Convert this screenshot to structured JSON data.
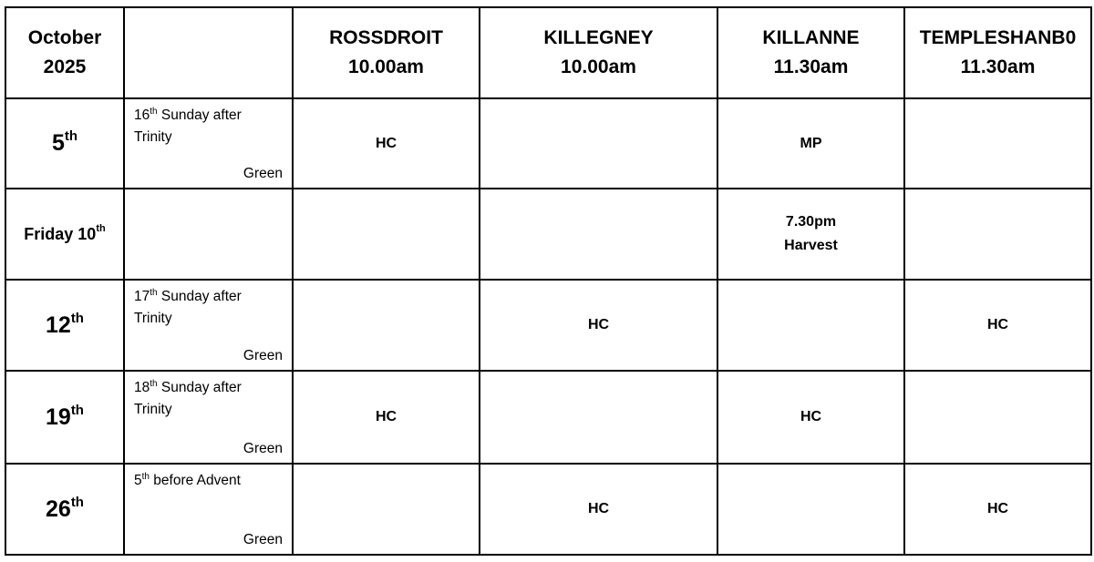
{
  "header": {
    "month": "October",
    "year": "2025",
    "churches": [
      {
        "name": "ROSSDROIT",
        "time": "10.00am"
      },
      {
        "name": "KILLEGNEY",
        "time": "10.00am"
      },
      {
        "name": "KILLANNE",
        "time": "11.30am"
      },
      {
        "name": "TEMPLESHANB0",
        "time": "11.30am"
      }
    ]
  },
  "rows": [
    {
      "prefix": "",
      "day": "5",
      "suffix": "th",
      "occ_num": "16",
      "occ_suf": "th",
      "occ_text": " Sunday after Trinity",
      "colour": "Green",
      "services": [
        "HC",
        "",
        "MP",
        ""
      ]
    },
    {
      "prefix": "Friday ",
      "day": "10",
      "suffix": "th",
      "occ_num": "",
      "occ_suf": "",
      "occ_text": "",
      "colour": "",
      "services": [
        "",
        "",
        "7.30pm\nHarvest",
        ""
      ]
    },
    {
      "prefix": "",
      "day": "12",
      "suffix": "th",
      "occ_num": "17",
      "occ_suf": "th",
      "occ_text": " Sunday after Trinity",
      "colour": "Green",
      "services": [
        "",
        "HC",
        "",
        "HC"
      ]
    },
    {
      "prefix": "",
      "day": "19",
      "suffix": "th",
      "occ_num": "18",
      "occ_suf": "th",
      "occ_text": " Sunday after Trinity",
      "colour": "Green",
      "services": [
        "HC",
        "",
        "HC",
        ""
      ]
    },
    {
      "prefix": "",
      "day": "26",
      "suffix": "th",
      "occ_num": "5",
      "occ_suf": "th",
      "occ_text": " before Advent",
      "colour": "Green",
      "services": [
        "",
        "HC",
        "",
        "HC"
      ]
    }
  ]
}
